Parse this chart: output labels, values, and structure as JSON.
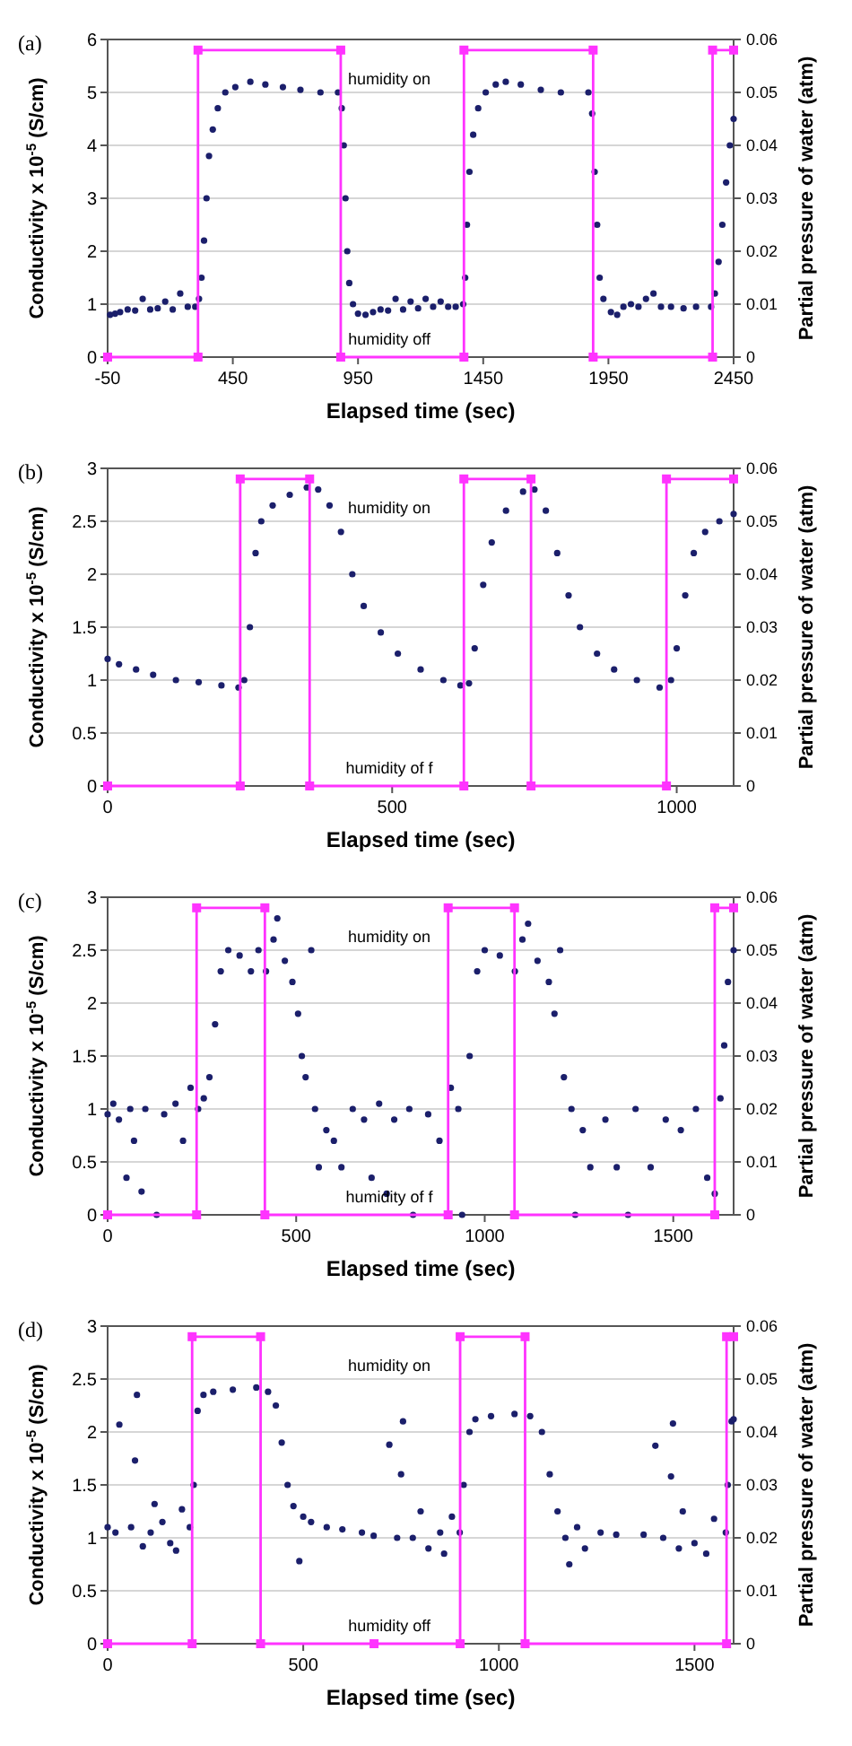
{
  "chart_data": [
    {
      "type": "scatter",
      "annotations": [
        "(a)",
        "humidity on",
        "humidity off"
      ],
      "xlabel": "Elapsed time (sec)",
      "ylabel": "Conductivity x 10$^{-5}$ (S/cm)",
      "y2label": "Partial pressure of water (atm)",
      "xlim": [
        -50,
        2450
      ],
      "xticks": [
        -50,
        450,
        950,
        1450,
        1950,
        2450
      ],
      "ylim": [
        0,
        6
      ],
      "yticks": [
        0,
        1,
        2,
        3,
        4,
        5,
        6
      ],
      "y2lim": [
        0,
        0.06
      ],
      "y2ticks": [
        0,
        0.01,
        0.02,
        0.03,
        0.04,
        0.05,
        0.06
      ],
      "grid": "y",
      "series": [
        {
          "type": "scatter",
          "color": "#1b1f6b",
          "marker": "circle",
          "x": [
            -40,
            -20,
            0,
            30,
            60,
            90,
            120,
            150,
            180,
            210,
            240,
            270,
            300,
            315,
            325,
            335,
            345,
            355,
            370,
            390,
            420,
            460,
            520,
            580,
            650,
            720,
            800,
            870,
            885,
            893,
            900,
            907,
            915,
            930,
            950,
            980,
            1010,
            1040,
            1070,
            1100,
            1130,
            1160,
            1190,
            1220,
            1250,
            1280,
            1310,
            1340,
            1370,
            1378,
            1385,
            1395,
            1410,
            1430,
            1460,
            1500,
            1540,
            1600,
            1680,
            1760,
            1870,
            1885,
            1895,
            1905,
            1915,
            1930,
            1960,
            1985,
            2010,
            2040,
            2070,
            2100,
            2130,
            2160,
            2200,
            2250,
            2300,
            2360,
            2375,
            2390,
            2405,
            2420,
            2435,
            2450
          ],
          "values": [
            0.8,
            0.82,
            0.85,
            0.9,
            0.88,
            1.1,
            0.9,
            0.92,
            1.05,
            0.9,
            1.2,
            0.95,
            0.95,
            1.1,
            1.5,
            2.2,
            3.0,
            3.8,
            4.3,
            4.7,
            5.0,
            5.1,
            5.2,
            5.15,
            5.1,
            5.05,
            5.0,
            5.0,
            4.7,
            4.0,
            3.0,
            2.0,
            1.4,
            1.0,
            0.82,
            0.8,
            0.85,
            0.9,
            0.88,
            1.1,
            0.9,
            1.05,
            0.92,
            1.1,
            0.95,
            1.05,
            0.95,
            0.95,
            1.0,
            1.5,
            2.5,
            3.5,
            4.2,
            4.7,
            5.0,
            5.15,
            5.2,
            5.15,
            5.05,
            5.0,
            5.0,
            4.6,
            3.5,
            2.5,
            1.5,
            1.1,
            0.85,
            0.8,
            0.95,
            1.0,
            0.95,
            1.1,
            1.2,
            0.95,
            0.95,
            0.92,
            0.95,
            0.95,
            1.2,
            1.8,
            2.5,
            3.3,
            4.0,
            4.5
          ]
        },
        {
          "type": "line",
          "axis": "y2",
          "color": "#ff33ff",
          "marker": "square",
          "line_style": "solid",
          "x": [
            -50,
            311,
            311,
            881,
            881,
            1373,
            1373,
            1889,
            1889,
            2366,
            2366,
            2450
          ],
          "values": [
            0,
            0,
            0.058,
            0.058,
            0,
            0,
            0.058,
            0.058,
            0,
            0,
            0.058,
            0.058
          ]
        }
      ]
    },
    {
      "type": "scatter",
      "annotations": [
        "(b)",
        "humidity on",
        "humidity of f"
      ],
      "xlabel": "Elapsed time (sec)",
      "ylabel": "Conductivity x 10$^{-5}$ (S/cm)",
      "y2label": "Partial pressure of water (atm)",
      "xlim": [
        0,
        1100
      ],
      "xticks": [
        0,
        500,
        1000
      ],
      "ylim": [
        0,
        3
      ],
      "yticks": [
        0,
        0.5,
        1,
        1.5,
        2,
        2.5,
        3
      ],
      "y2lim": [
        0,
        0.06
      ],
      "y2ticks": [
        0,
        0.01,
        0.02,
        0.03,
        0.04,
        0.05,
        0.06
      ],
      "grid": "y",
      "series": [
        {
          "type": "scatter",
          "color": "#1b1f6b",
          "marker": "circle",
          "x": [
            0,
            20,
            50,
            80,
            120,
            160,
            200,
            230,
            240,
            250,
            260,
            270,
            290,
            320,
            350,
            370,
            390,
            410,
            430,
            450,
            480,
            510,
            550,
            590,
            620,
            635,
            645,
            660,
            675,
            700,
            730,
            750,
            770,
            790,
            810,
            830,
            860,
            890,
            930,
            970,
            990,
            1000,
            1015,
            1030,
            1050,
            1075,
            1100
          ],
          "values": [
            1.2,
            1.15,
            1.1,
            1.05,
            1.0,
            0.98,
            0.95,
            0.93,
            1.0,
            1.5,
            2.2,
            2.5,
            2.65,
            2.75,
            2.82,
            2.8,
            2.65,
            2.4,
            2.0,
            1.7,
            1.45,
            1.25,
            1.1,
            1.0,
            0.95,
            0.97,
            1.3,
            1.9,
            2.3,
            2.6,
            2.78,
            2.8,
            2.6,
            2.2,
            1.8,
            1.5,
            1.25,
            1.1,
            1.0,
            0.93,
            1.0,
            1.3,
            1.8,
            2.2,
            2.4,
            2.5,
            2.57
          ]
        },
        {
          "type": "line",
          "axis": "y2",
          "color": "#ff33ff",
          "marker": "square",
          "line_style": "solid",
          "x": [
            0,
            233,
            233,
            355,
            355,
            626,
            626,
            744,
            744,
            982,
            982,
            1100
          ],
          "values": [
            0,
            0,
            0.058,
            0.058,
            0,
            0,
            0.058,
            0.058,
            0,
            0,
            0.058,
            0.058
          ]
        }
      ]
    },
    {
      "type": "scatter",
      "annotations": [
        "(c)",
        "humidity on",
        "humidity of f"
      ],
      "xlabel": "Elapsed time (sec)",
      "ylabel": "Conductivity x 10$^{-5}$ (S/cm)",
      "y2label": "Partial pressure of water (atm)",
      "xlim": [
        0,
        1660
      ],
      "xticks": [
        0,
        500,
        1000,
        1500
      ],
      "ylim": [
        0,
        3
      ],
      "yticks": [
        0,
        0.5,
        1,
        1.5,
        2,
        2.5,
        3
      ],
      "y2lim": [
        0,
        0.06
      ],
      "y2ticks": [
        0,
        0.01,
        0.02,
        0.03,
        0.04,
        0.05,
        0.06
      ],
      "grid": "y",
      "series": [
        {
          "type": "scatter",
          "color": "#1b1f6b",
          "marker": "circle",
          "x": [
            0,
            15,
            30,
            50,
            60,
            70,
            90,
            100,
            130,
            150,
            180,
            200,
            220,
            240,
            255,
            270,
            285,
            300,
            320,
            350,
            380,
            400,
            420,
            440,
            450,
            470,
            490,
            505,
            515,
            525,
            540,
            550,
            560,
            580,
            600,
            620,
            650,
            680,
            700,
            720,
            740,
            760,
            800,
            810,
            850,
            880,
            910,
            930,
            940,
            960,
            980,
            1000,
            1040,
            1080,
            1100,
            1115,
            1140,
            1170,
            1185,
            1200,
            1210,
            1230,
            1240,
            1260,
            1280,
            1320,
            1350,
            1380,
            1400,
            1440,
            1480,
            1520,
            1560,
            1590,
            1610,
            1625,
            1635,
            1645,
            1660
          ],
          "values": [
            0.95,
            1.05,
            0.9,
            0.35,
            1.0,
            0.7,
            0.22,
            1.0,
            0,
            0.95,
            1.05,
            0.7,
            1.2,
            1.0,
            1.1,
            1.3,
            1.8,
            2.3,
            2.5,
            2.45,
            2.3,
            2.5,
            2.3,
            2.6,
            2.8,
            2.4,
            2.2,
            1.9,
            1.5,
            1.3,
            2.5,
            1.0,
            0.45,
            0.8,
            0.7,
            0.45,
            1.0,
            0.9,
            0.35,
            1.05,
            0.2,
            0.9,
            1.0,
            0,
            0.95,
            0.7,
            1.2,
            1.0,
            0,
            1.5,
            2.3,
            2.5,
            2.45,
            2.3,
            2.6,
            2.75,
            2.4,
            2.2,
            1.9,
            2.5,
            1.3,
            1.0,
            0,
            0.8,
            0.45,
            0.9,
            0.45,
            0,
            1.0,
            0.45,
            0.9,
            0.8,
            1.0,
            0.35,
            0.2,
            1.1,
            1.6,
            2.2,
            2.5
          ]
        },
        {
          "type": "line",
          "axis": "y2",
          "color": "#ff33ff",
          "marker": "square",
          "line_style": "solid",
          "x": [
            0,
            236,
            236,
            417,
            417,
            903,
            903,
            1079,
            1079,
            1610,
            1610,
            1660
          ],
          "values": [
            0,
            0,
            0.058,
            0.058,
            0,
            0,
            0.058,
            0.058,
            0,
            0,
            0.058,
            0.058
          ]
        }
      ]
    },
    {
      "type": "scatter",
      "annotations": [
        "(d)",
        "humidity on",
        "humidity off"
      ],
      "xlabel": "Elapsed time (sec)",
      "ylabel": "Conductivity x 10$^{-5}$ (S/cm)",
      "y2label": "Partial pressure of water (atm)",
      "xlim": [
        0,
        1600
      ],
      "xticks": [
        0,
        500,
        1000,
        1500
      ],
      "ylim": [
        0,
        3
      ],
      "yticks": [
        0,
        0.5,
        1,
        1.5,
        2,
        2.5,
        3
      ],
      "y2lim": [
        0,
        0.06
      ],
      "y2ticks": [
        0,
        0.01,
        0.02,
        0.03,
        0.04,
        0.05,
        0.06
      ],
      "grid": "y",
      "series": [
        {
          "type": "scatter",
          "color": "#1b1f6b",
          "marker": "circle",
          "x": [
            0,
            20,
            30,
            60,
            70,
            75,
            90,
            110,
            120,
            140,
            160,
            175,
            190,
            210,
            220,
            230,
            245,
            270,
            320,
            380,
            410,
            430,
            445,
            460,
            475,
            490,
            500,
            520,
            560,
            600,
            650,
            680,
            720,
            740,
            750,
            755,
            780,
            800,
            820,
            850,
            860,
            880,
            900,
            910,
            925,
            940,
            980,
            1040,
            1080,
            1110,
            1130,
            1150,
            1170,
            1180,
            1200,
            1220,
            1260,
            1300,
            1370,
            1400,
            1420,
            1440,
            1445,
            1460,
            1470,
            1500,
            1530,
            1550,
            1580,
            1585,
            1595,
            1600
          ],
          "values": [
            1.1,
            1.05,
            2.07,
            1.1,
            1.73,
            2.35,
            0.92,
            1.05,
            1.32,
            1.15,
            0.95,
            0.88,
            1.27,
            1.1,
            1.5,
            2.2,
            2.35,
            2.38,
            2.4,
            2.42,
            2.38,
            2.25,
            1.9,
            1.5,
            1.3,
            0.78,
            1.2,
            1.15,
            1.1,
            1.08,
            1.05,
            1.02,
            1.88,
            1.0,
            1.6,
            2.1,
            1.0,
            1.25,
            0.9,
            1.05,
            0.85,
            1.2,
            1.05,
            1.5,
            2.0,
            2.12,
            2.15,
            2.17,
            2.15,
            2.0,
            1.6,
            1.25,
            1.0,
            0.75,
            1.1,
            0.9,
            1.05,
            1.03,
            1.03,
            1.87,
            1.0,
            1.58,
            2.08,
            0.9,
            1.25,
            0.95,
            0.85,
            1.18,
            1.05,
            1.5,
            2.1,
            2.12
          ]
        },
        {
          "type": "line",
          "axis": "y2",
          "color": "#ff33ff",
          "marker": "square",
          "line_style": "solid",
          "x": [
            0,
            216,
            216,
            391,
            391,
            681,
            901,
            901,
            1067,
            1067,
            1582,
            1582,
            1600
          ],
          "values": [
            0,
            0,
            0.058,
            0.058,
            0,
            0,
            0,
            0.058,
            0.058,
            0,
            0,
            0.058,
            0.058
          ]
        }
      ]
    }
  ]
}
